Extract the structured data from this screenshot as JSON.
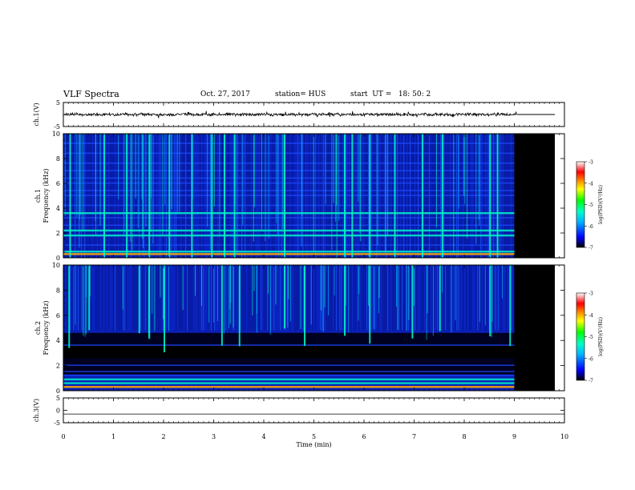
{
  "header": {
    "title": "VLF Spectra",
    "date": "Oct. 27, 2017",
    "station": "station= HUS",
    "start": "start  UT =   18: 50: 2"
  },
  "colors": {
    "colormap": [
      "#000000",
      "#0000ff",
      "#00b4ff",
      "#00ffc8",
      "#00ff00",
      "#ffff00",
      "#ff8800",
      "#ff0000",
      "#ffffff"
    ],
    "nodata": "#000000"
  },
  "chart_data": [
    {
      "type": "line",
      "panel": "ch1-waveform",
      "ylabel": "ch.1(V)",
      "ylim": [
        -5,
        5
      ],
      "yticks": [
        "5",
        "-5"
      ],
      "xlim": [
        0,
        10
      ],
      "data_end_min": 9.05,
      "description_series": [
        {
          "name": "ch.1",
          "x": [
            0,
            9.05,
            9.05,
            10
          ],
          "y": [
            0,
            0,
            0,
            0
          ]
        }
      ]
    },
    {
      "type": "heatmap",
      "panel": "ch1-spectrogram",
      "ylabel": "ch.1\nFrequency (kHz)",
      "ylim": [
        0,
        10
      ],
      "yticks": [
        "0",
        "2",
        "4",
        "6",
        "8",
        "10"
      ],
      "xlim": [
        0,
        10
      ],
      "data_end_min": 9.0,
      "colorbar": {
        "label": "log(PSD)(V²/Hz)",
        "ticks": [
          "-3",
          "-4",
          "-5",
          "-6",
          "-7"
        ],
        "range": [
          -7,
          -3
        ]
      },
      "bands_khz": [
        0.3,
        0.5,
        1.0,
        1.8,
        2.2,
        2.6,
        3.2,
        3.6,
        4.2,
        5.0,
        5.4,
        6.0,
        6.4,
        7.0,
        7.6,
        8.4,
        9.2
      ],
      "burst_min": [
        0.12,
        0.8,
        1.25,
        1.7,
        2.1,
        2.55,
        2.95,
        3.2,
        3.4,
        4.4,
        5.6,
        5.75,
        6.1,
        6.6,
        7.15,
        7.55,
        8.5,
        8.65
      ]
    },
    {
      "type": "heatmap",
      "panel": "ch2-spectrogram",
      "ylabel": "ch.2\nFrequency (kHz)",
      "ylim": [
        0,
        10
      ],
      "yticks": [
        "0",
        "2",
        "4",
        "6",
        "8",
        "10"
      ],
      "xlim": [
        0,
        10
      ],
      "data_end_min": 9.0,
      "colorbar": {
        "label": "log(PSD)(V²/Hz)",
        "ticks": [
          "-3",
          "-4",
          "-5",
          "-6",
          "-7"
        ],
        "range": [
          -7,
          -3
        ]
      },
      "bands_khz": [
        0.3,
        0.6,
        0.9,
        1.2,
        1.5,
        2.0,
        3.6
      ],
      "burst_min": [
        0.1,
        0.5,
        1.5,
        1.7,
        2.0,
        3.15,
        3.5,
        4.4,
        4.8,
        5.6,
        6.1,
        6.95,
        7.5,
        8.5,
        8.9
      ]
    },
    {
      "type": "line",
      "panel": "ch3-waveform",
      "ylabel": "ch.3(V)",
      "ylim": [
        -5,
        5
      ],
      "yticks": [
        "5",
        "0",
        "-5"
      ],
      "xlim": [
        0,
        10
      ],
      "xlabel": "Time (min)",
      "xticks": [
        "0",
        "1",
        "2",
        "3",
        "4",
        "5",
        "6",
        "7",
        "8",
        "9",
        "10"
      ],
      "series": [
        {
          "name": "ch.3",
          "x": [
            0,
            10
          ],
          "y": [
            -1.5,
            -1.5
          ]
        }
      ]
    }
  ]
}
